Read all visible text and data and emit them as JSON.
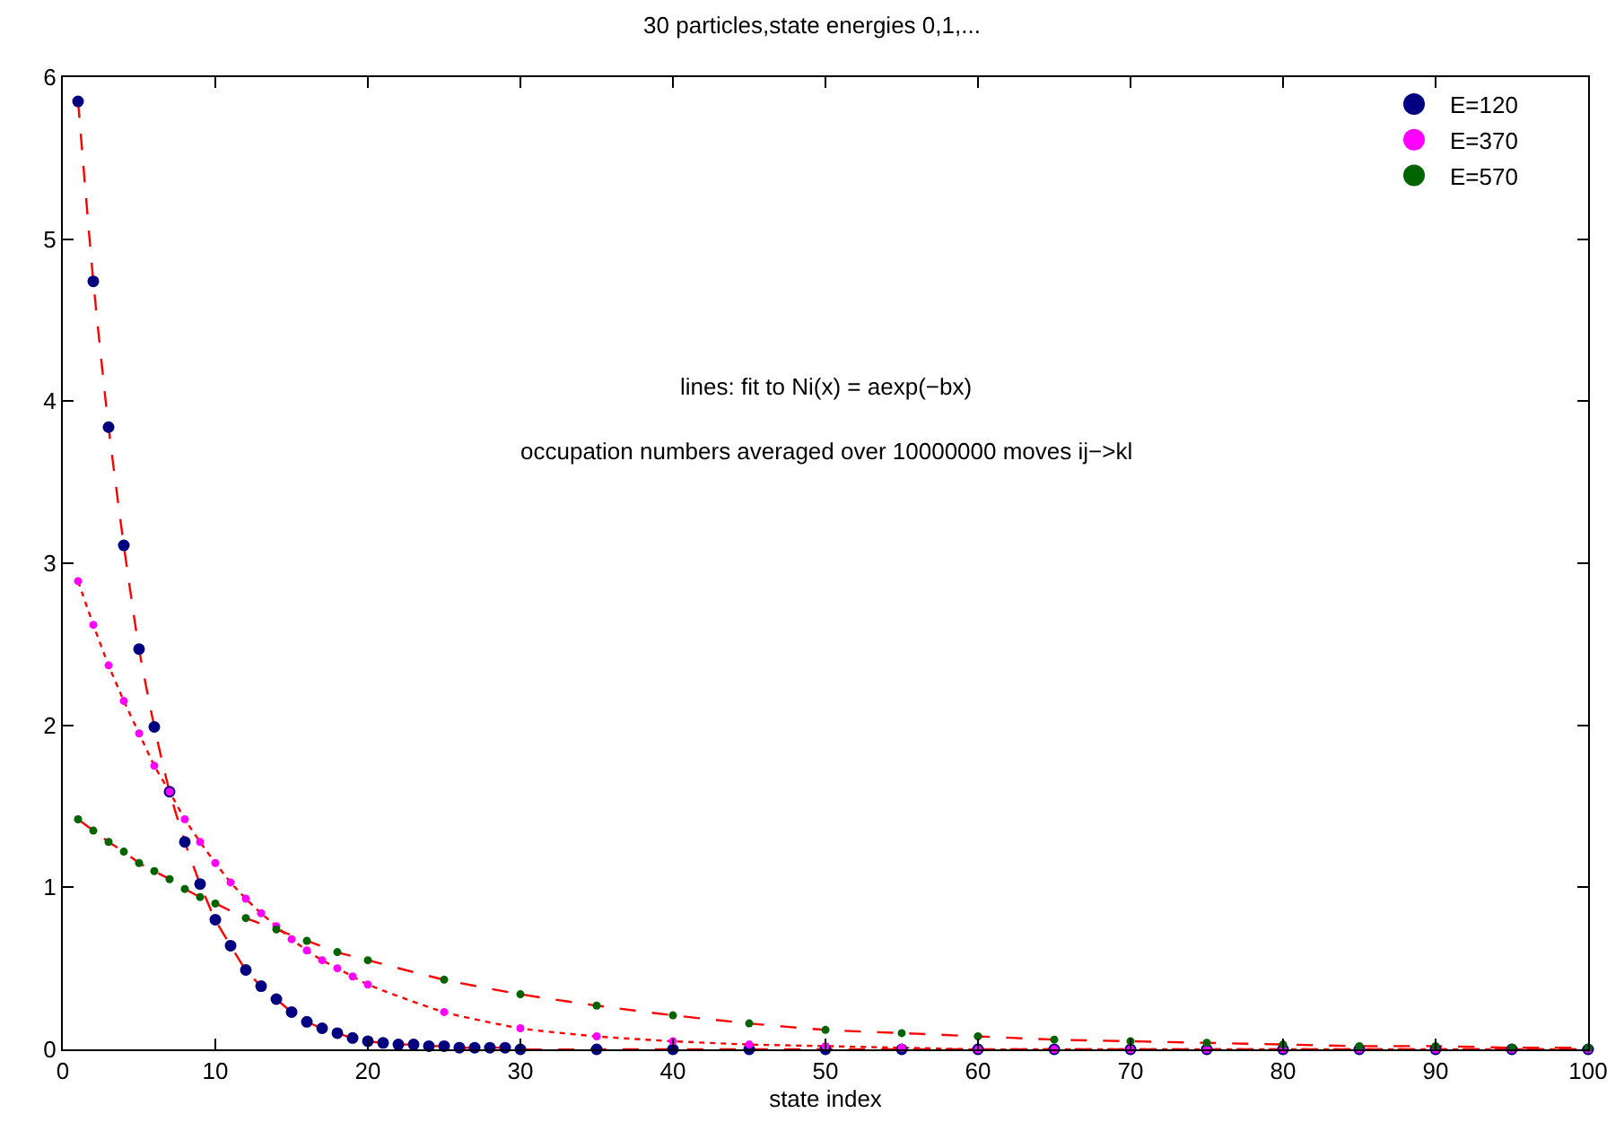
{
  "chart_data": {
    "type": "scatter",
    "title": "30 particles,state energies 0,1,...",
    "xlabel": "state index",
    "annotations": [
      "lines: fit to Ni(x) = aexp(−bx)",
      "occupation numbers averaged over 10000000 moves ij−>kl"
    ],
    "xlim": [
      0,
      100
    ],
    "xticks": [
      0,
      10,
      20,
      30,
      40,
      50,
      60,
      70,
      80,
      90,
      100
    ],
    "ylim": [
      0,
      6
    ],
    "yticks": [
      0,
      1,
      2,
      3,
      4,
      5,
      6
    ],
    "grid": false,
    "legend": "top right",
    "marker": "circle",
    "series": [
      {
        "type": "line",
        "color": "#ff0000",
        "line_style": "dashed",
        "marker": "none",
        "x": [
          1,
          2,
          3,
          4,
          5,
          6,
          7,
          8,
          9,
          10,
          11,
          12,
          13,
          14,
          15,
          16,
          17,
          18,
          19,
          20,
          21,
          22,
          23,
          24,
          25,
          26,
          27,
          28,
          29,
          30,
          35,
          40,
          45,
          50,
          55,
          60,
          65,
          70,
          75,
          80,
          85,
          90,
          95,
          100
        ],
        "values": [
          5.85,
          4.74,
          3.84,
          3.11,
          2.47,
          1.99,
          1.59,
          1.28,
          1.02,
          0.8,
          0.64,
          0.49,
          0.39,
          0.31,
          0.23,
          0.17,
          0.13,
          0.1,
          0.07,
          0.05,
          0.04,
          0.03,
          0.03,
          0.02,
          0.02,
          0.01,
          0.01,
          0.01,
          0.01,
          0,
          0,
          0,
          0,
          0,
          0,
          0,
          0,
          0,
          0,
          0,
          0,
          0,
          0,
          0
        ]
      },
      {
        "type": "line",
        "color": "#ff0000",
        "line_style": "dotted",
        "marker": "none",
        "x": [
          1,
          2,
          3,
          4,
          5,
          6,
          7,
          8,
          9,
          10,
          11,
          12,
          13,
          14,
          15,
          16,
          17,
          18,
          19,
          20,
          25,
          30,
          35,
          40,
          45,
          50,
          55,
          60,
          65,
          70,
          75,
          80,
          85,
          90,
          95,
          100
        ],
        "values": [
          2.89,
          2.62,
          2.37,
          2.15,
          1.95,
          1.75,
          1.59,
          1.42,
          1.28,
          1.15,
          1.03,
          0.93,
          0.84,
          0.76,
          0.68,
          0.61,
          0.55,
          0.5,
          0.45,
          0.4,
          0.23,
          0.13,
          0.08,
          0.05,
          0.03,
          0.02,
          0.01,
          0,
          0,
          0,
          0,
          0,
          0,
          0,
          0,
          0
        ]
      },
      {
        "type": "line",
        "color": "#ff0000",
        "line_style": "dashed",
        "marker": "none",
        "x": [
          1,
          2,
          3,
          4,
          5,
          6,
          7,
          8,
          9,
          10,
          12,
          14,
          16,
          18,
          20,
          25,
          30,
          35,
          40,
          45,
          50,
          55,
          60,
          65,
          70,
          75,
          80,
          85,
          90,
          95,
          100
        ],
        "values": [
          1.42,
          1.35,
          1.28,
          1.22,
          1.15,
          1.1,
          1.05,
          0.99,
          0.94,
          0.9,
          0.81,
          0.74,
          0.67,
          0.6,
          0.55,
          0.43,
          0.34,
          0.27,
          0.21,
          0.16,
          0.12,
          0.1,
          0.08,
          0.06,
          0.05,
          0.04,
          0.03,
          0.02,
          0.02,
          0.01,
          0.01
        ]
      },
      {
        "name": "E=120",
        "color": "#000080",
        "x": [
          1,
          2,
          3,
          4,
          5,
          6,
          7,
          8,
          9,
          10,
          11,
          12,
          13,
          14,
          15,
          16,
          17,
          18,
          19,
          20,
          21,
          22,
          23,
          24,
          25,
          26,
          27,
          28,
          29,
          30,
          35,
          40,
          45,
          50,
          55,
          60,
          65,
          70,
          75,
          80,
          85,
          90,
          95,
          100
        ],
        "values": [
          5.85,
          4.74,
          3.84,
          3.11,
          2.47,
          1.99,
          1.59,
          1.28,
          1.02,
          0.8,
          0.64,
          0.49,
          0.39,
          0.31,
          0.23,
          0.17,
          0.13,
          0.1,
          0.07,
          0.05,
          0.04,
          0.03,
          0.03,
          0.02,
          0.02,
          0.01,
          0.01,
          0.01,
          0.01,
          0,
          0,
          0,
          0,
          0,
          0,
          0,
          0,
          0,
          0,
          0,
          0,
          0,
          0,
          0
        ]
      },
      {
        "name": "E=370",
        "color": "#ff00ff",
        "x": [
          1,
          2,
          3,
          4,
          5,
          6,
          7,
          8,
          9,
          10,
          11,
          12,
          13,
          14,
          15,
          16,
          17,
          18,
          19,
          20,
          25,
          30,
          35,
          40,
          45,
          50,
          55,
          60,
          65,
          70,
          75,
          80,
          85,
          90,
          95,
          100
        ],
        "values": [
          2.89,
          2.62,
          2.37,
          2.15,
          1.95,
          1.75,
          1.59,
          1.42,
          1.28,
          1.15,
          1.03,
          0.93,
          0.84,
          0.76,
          0.68,
          0.61,
          0.55,
          0.5,
          0.45,
          0.4,
          0.23,
          0.13,
          0.08,
          0.05,
          0.03,
          0.02,
          0.01,
          0,
          0,
          0,
          0,
          0,
          0,
          0,
          0,
          0
        ]
      },
      {
        "name": "E=570",
        "color": "#006400",
        "x": [
          1,
          2,
          3,
          4,
          5,
          6,
          7,
          8,
          9,
          10,
          12,
          14,
          16,
          18,
          20,
          25,
          30,
          35,
          40,
          45,
          50,
          55,
          60,
          65,
          70,
          75,
          80,
          85,
          90,
          95,
          100
        ],
        "values": [
          1.42,
          1.35,
          1.28,
          1.22,
          1.15,
          1.1,
          1.05,
          0.99,
          0.94,
          0.9,
          0.81,
          0.74,
          0.67,
          0.6,
          0.55,
          0.43,
          0.34,
          0.27,
          0.21,
          0.16,
          0.12,
          0.1,
          0.08,
          0.06,
          0.05,
          0.04,
          0.03,
          0.02,
          0.02,
          0.01,
          0.01
        ]
      }
    ]
  }
}
